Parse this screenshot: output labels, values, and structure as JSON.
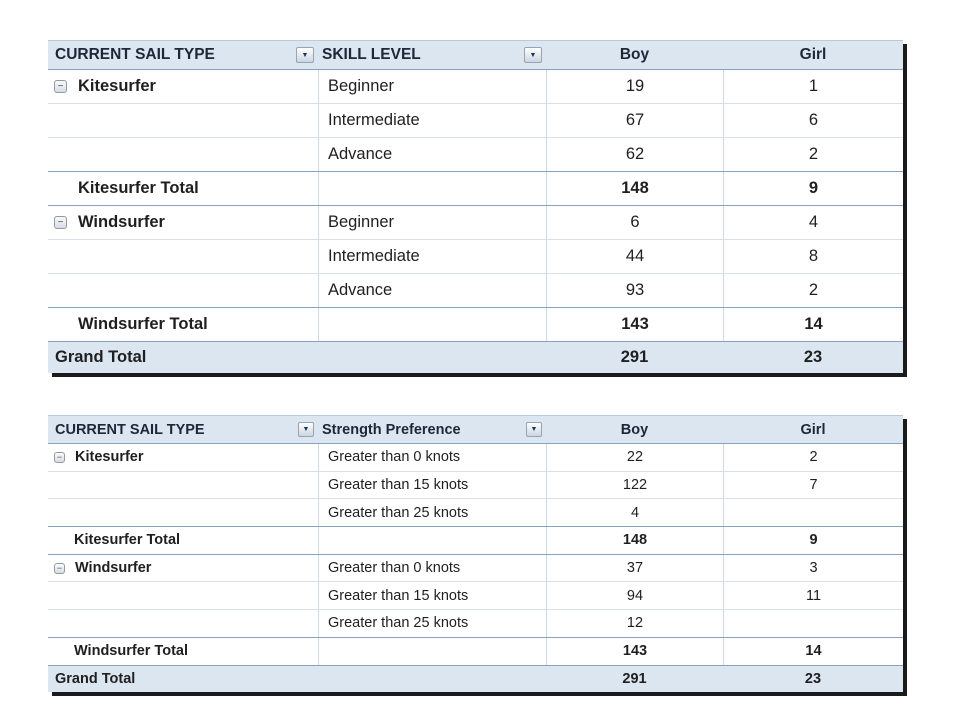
{
  "icons": {
    "dropdown_glyph": "▼",
    "collapse_glyph": "−"
  },
  "colors": {
    "header_bg": "#dce6f1",
    "header_text": "#1c2737",
    "body_text": "#1f1f1f",
    "row_border_light": "#d6e0ec",
    "col_border": "#ccd9e8",
    "row_border_strong": "#87a3bf",
    "outer_shadow": "#1b1b1b",
    "dropdown_arrow": "#17375d"
  },
  "tables": [
    {
      "name": "skill-level-pivot",
      "columns": [
        {
          "key": "current-sail-type",
          "label": "CURRENT SAIL TYPE",
          "dropdown": true
        },
        {
          "key": "skill-level",
          "label": "SKILL LEVEL",
          "dropdown": true
        },
        {
          "key": "boy",
          "label": "Boy",
          "dropdown": false
        },
        {
          "key": "girl",
          "label": "Girl",
          "dropdown": false
        }
      ],
      "rows": [
        {
          "type": "group",
          "group": "Kitesurfer",
          "label": "Beginner",
          "boy": "19",
          "girl": "1"
        },
        {
          "type": "data",
          "group": "",
          "label": "Intermediate",
          "boy": "67",
          "girl": "6"
        },
        {
          "type": "data",
          "group": "",
          "label": "Advance",
          "boy": "62",
          "girl": "2"
        },
        {
          "type": "total",
          "group": "Kitesurfer Total",
          "label": "",
          "boy": "148",
          "girl": "9"
        },
        {
          "type": "group",
          "group": "Windsurfer",
          "label": "Beginner",
          "boy": "6",
          "girl": "4"
        },
        {
          "type": "data",
          "group": "",
          "label": "Intermediate",
          "boy": "44",
          "girl": "8"
        },
        {
          "type": "data",
          "group": "",
          "label": "Advance",
          "boy": "93",
          "girl": "2"
        },
        {
          "type": "total",
          "group": "Windsurfer Total",
          "label": "",
          "boy": "143",
          "girl": "14"
        },
        {
          "type": "grand",
          "group": "Grand Total",
          "label": "",
          "boy": "291",
          "girl": "23"
        }
      ]
    },
    {
      "name": "strength-preference-pivot",
      "columns": [
        {
          "key": "current-sail-type",
          "label": "CURRENT SAIL TYPE",
          "dropdown": true
        },
        {
          "key": "strength-preference",
          "label": "Strength Preference",
          "dropdown": true
        },
        {
          "key": "boy",
          "label": "Boy",
          "dropdown": false
        },
        {
          "key": "girl",
          "label": "Girl",
          "dropdown": false
        }
      ],
      "rows": [
        {
          "type": "group",
          "group": "Kitesurfer",
          "label": "Greater than 0 knots",
          "boy": "22",
          "girl": "2"
        },
        {
          "type": "data",
          "group": "",
          "label": "Greater than 15 knots",
          "boy": "122",
          "girl": "7"
        },
        {
          "type": "data",
          "group": "",
          "label": "Greater than 25 knots",
          "boy": "4",
          "girl": ""
        },
        {
          "type": "total",
          "group": "Kitesurfer Total",
          "label": "",
          "boy": "148",
          "girl": "9"
        },
        {
          "type": "group",
          "group": "Windsurfer",
          "label": "Greater than 0 knots",
          "boy": "37",
          "girl": "3"
        },
        {
          "type": "data",
          "group": "",
          "label": "Greater than 15 knots",
          "boy": "94",
          "girl": "11"
        },
        {
          "type": "data",
          "group": "",
          "label": "Greater than 25 knots",
          "boy": "12",
          "girl": ""
        },
        {
          "type": "total",
          "group": "Windsurfer Total",
          "label": "",
          "boy": "143",
          "girl": "14"
        },
        {
          "type": "grand",
          "group": "Grand Total",
          "label": "",
          "boy": "291",
          "girl": "23"
        }
      ]
    }
  ]
}
